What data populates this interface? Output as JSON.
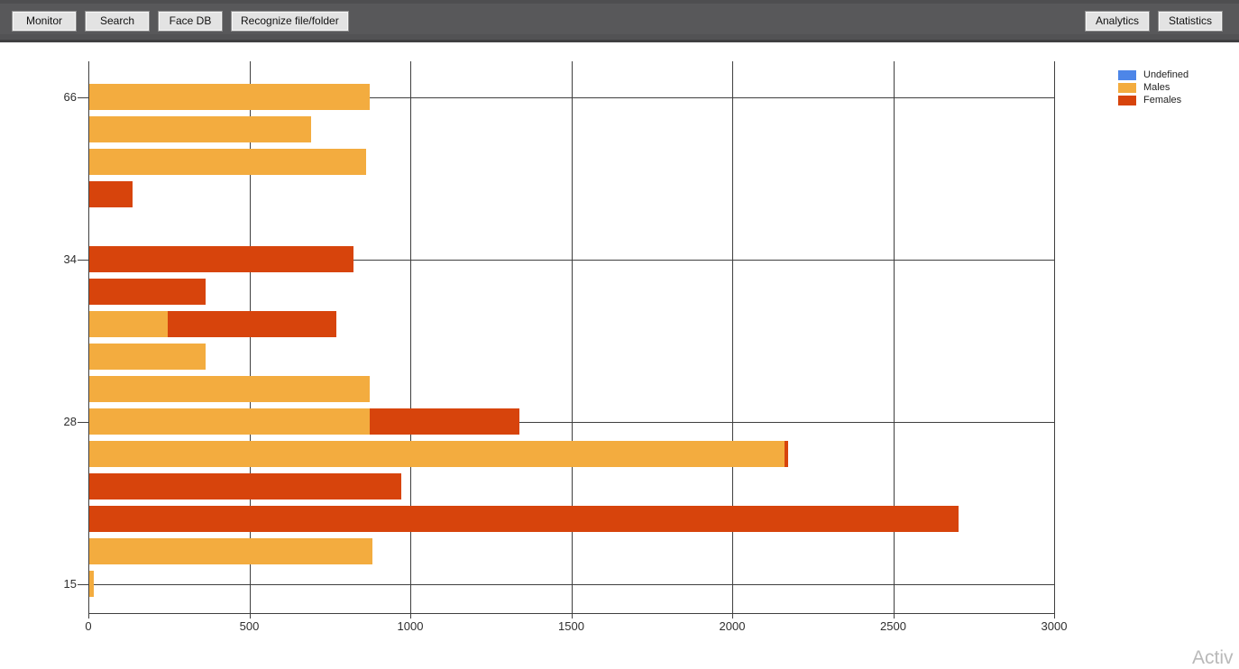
{
  "toolbar": {
    "left_buttons": [
      {
        "label": "Monitor"
      },
      {
        "label": "Search"
      },
      {
        "label": "Face DB"
      },
      {
        "label": "Recognize file/folder"
      }
    ],
    "right_buttons": [
      {
        "label": "Analytics"
      },
      {
        "label": "Statistics"
      }
    ]
  },
  "watermark": "Activ",
  "colors": {
    "toolbar_bg": "#58585a",
    "button_bg": "#e3e3e3",
    "axis_line": "#3f3f3f",
    "undefined_series": "#4D86E8",
    "males_series": "#F3AC3F",
    "females_series": "#D7440C"
  },
  "chart_data": {
    "type": "bar",
    "orientation": "horizontal",
    "stacked": true,
    "title": "",
    "xlabel": "",
    "ylabel": "",
    "grid": true,
    "x_ticks": [
      0,
      500,
      1000,
      1500,
      2000,
      2500,
      3000
    ],
    "xlim": [
      0,
      3000
    ],
    "y_axis_shown_labels": [
      "66",
      "34",
      "28",
      "15"
    ],
    "legend": {
      "position": "top-right",
      "entries": [
        {
          "name": "Undefined",
          "color": "#4D86E8"
        },
        {
          "name": "Males",
          "color": "#F3AC3F"
        },
        {
          "name": "Females",
          "color": "#D7440C"
        }
      ]
    },
    "series": [
      {
        "name": "Males",
        "color": "#F3AC3F"
      },
      {
        "name": "Females",
        "color": "#D7440C"
      }
    ],
    "rows": [
      {
        "y_label": "66",
        "males": 870,
        "females": 0
      },
      {
        "y_label": "",
        "males": 690,
        "females": 0
      },
      {
        "y_label": "",
        "males": 860,
        "females": 0
      },
      {
        "y_label": "",
        "males": 0,
        "females": 135
      },
      {
        "y_label": "",
        "males": 0,
        "females": 0
      },
      {
        "y_label": "34",
        "males": 0,
        "females": 820
      },
      {
        "y_label": "",
        "males": 0,
        "females": 360
      },
      {
        "y_label": "",
        "males": 245,
        "females": 525
      },
      {
        "y_label": "",
        "males": 360,
        "females": 0
      },
      {
        "y_label": "",
        "males": 870,
        "females": 0
      },
      {
        "y_label": "28",
        "males": 870,
        "females": 465
      },
      {
        "y_label": "",
        "males": 2160,
        "females": 10
      },
      {
        "y_label": "",
        "males": 0,
        "females": 970
      },
      {
        "y_label": "",
        "males": 0,
        "females": 2700
      },
      {
        "y_label": "",
        "males": 880,
        "females": 0
      },
      {
        "y_label": "15",
        "males": 15,
        "females": 0
      }
    ]
  }
}
